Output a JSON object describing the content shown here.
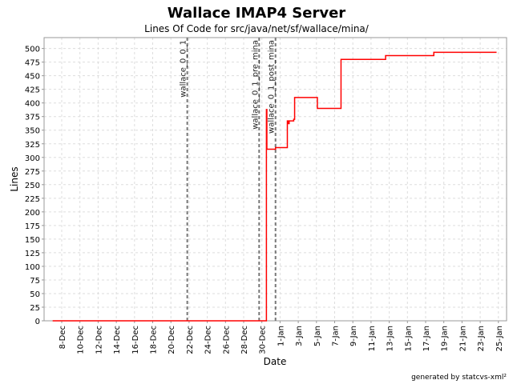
{
  "chart_data": {
    "type": "line",
    "title": "Wallace IMAP4 Server",
    "subtitle": "Lines Of Code for src/java/net/sf/wallace/mina/",
    "xlabel": "Date",
    "ylabel": "Lines",
    "x_unit": "days since 8-Dec",
    "xlim": [
      -1.94,
      48.9
    ],
    "ylim": [
      0,
      520
    ],
    "grid": true,
    "ytick_step": 25,
    "xticks": [
      {
        "d": 0,
        "label": "8-Dec"
      },
      {
        "d": 2,
        "label": "10-Dec"
      },
      {
        "d": 4,
        "label": "12-Dec"
      },
      {
        "d": 6,
        "label": "14-Dec"
      },
      {
        "d": 8,
        "label": "16-Dec"
      },
      {
        "d": 10,
        "label": "18-Dec"
      },
      {
        "d": 12,
        "label": "20-Dec"
      },
      {
        "d": 14,
        "label": "22-Dec"
      },
      {
        "d": 16,
        "label": "24-Dec"
      },
      {
        "d": 18,
        "label": "26-Dec"
      },
      {
        "d": 20,
        "label": "28-Dec"
      },
      {
        "d": 22,
        "label": "30-Dec"
      },
      {
        "d": 24,
        "label": "1-Jan"
      },
      {
        "d": 26,
        "label": "3-Jan"
      },
      {
        "d": 28,
        "label": "5-Jan"
      },
      {
        "d": 30,
        "label": "7-Jan"
      },
      {
        "d": 32,
        "label": "9-Jan"
      },
      {
        "d": 34,
        "label": "11-Jan"
      },
      {
        "d": 36,
        "label": "13-Jan"
      },
      {
        "d": 38,
        "label": "15-Jan"
      },
      {
        "d": 40,
        "label": "17-Jan"
      },
      {
        "d": 42,
        "label": "19-Jan"
      },
      {
        "d": 44,
        "label": "21-Jan"
      },
      {
        "d": 46,
        "label": "23-Jan"
      },
      {
        "d": 48,
        "label": "25-Jan"
      }
    ],
    "series": [
      {
        "name": "Lines",
        "color": "#ff0000",
        "step": true,
        "points": [
          [
            -1,
            0
          ],
          [
            22.5,
            0
          ],
          [
            22.5,
            388
          ],
          [
            22.55,
            315
          ],
          [
            23.5,
            318
          ],
          [
            24.7,
            318
          ],
          [
            24.8,
            367
          ],
          [
            24.9,
            362
          ],
          [
            25.0,
            367
          ],
          [
            25.5,
            370
          ],
          [
            25.6,
            410
          ],
          [
            28.1,
            390
          ],
          [
            30.7,
            480
          ],
          [
            35.6,
            487
          ],
          [
            40.9,
            493
          ],
          [
            47.8,
            493
          ]
        ]
      }
    ],
    "markers": [
      {
        "d": 13.8,
        "label": "wallace_0_0_1"
      },
      {
        "d": 21.7,
        "label": "wallace_0_1_pre_mina"
      },
      {
        "d": 23.5,
        "label": "wallace_0_1_post_mina"
      }
    ],
    "footer": "generated by statcvs-xml²"
  }
}
